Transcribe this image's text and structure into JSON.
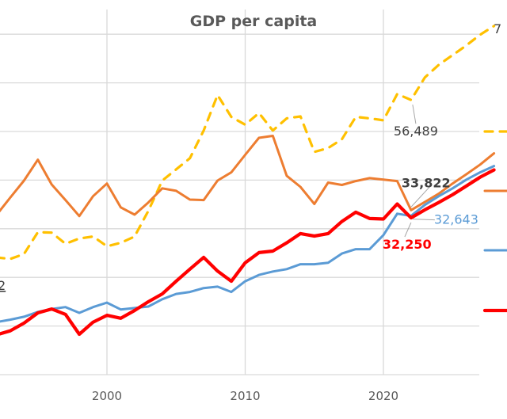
{
  "chart_data": {
    "type": "line",
    "title": "GDP per capita",
    "xlabel": "",
    "ylabel": "",
    "x": [
      1992,
      1993,
      1994,
      1995,
      1996,
      1997,
      1998,
      1999,
      2000,
      2001,
      2002,
      2003,
      2004,
      2005,
      2006,
      2007,
      2008,
      2009,
      2010,
      2011,
      2012,
      2013,
      2014,
      2015,
      2016,
      2017,
      2018,
      2019,
      2020,
      2021,
      2022,
      2023,
      2024,
      2025,
      2026,
      2027,
      2028
    ],
    "x_ticks": [
      "2000",
      "2010",
      "2020"
    ],
    "x_tick_values": [
      2000,
      2010,
      2020
    ],
    "y_gridlines": [
      0,
      10000,
      20000,
      30000,
      40000,
      50000,
      60000,
      70000
    ],
    "ylim": [
      0,
      70000
    ],
    "grid": true,
    "legend": "right (labels cropped)",
    "series": [
      {
        "name": "series-yellow-dashed",
        "color": "#FFC000",
        "style": "dashed",
        "values": [
          24100,
          23800,
          24800,
          29300,
          29200,
          26900,
          28000,
          28400,
          26400,
          27100,
          28400,
          33700,
          39900,
          42200,
          44500,
          50200,
          57500,
          53000,
          51400,
          53800,
          50200,
          52700,
          53100,
          45800,
          46600,
          48400,
          53000,
          52700,
          52300,
          57700,
          56489,
          61100,
          63700,
          65700,
          67700,
          69900,
          71700
        ]
      },
      {
        "name": "series-orange",
        "color": "#ED7D31",
        "style": "solid",
        "values": [
          32800,
          36400,
          39900,
          44200,
          39100,
          35900,
          32600,
          36700,
          39300,
          34400,
          32900,
          35400,
          38300,
          37800,
          36000,
          35900,
          39900,
          41600,
          45200,
          48700,
          49100,
          40900,
          38600,
          35100,
          39500,
          39000,
          39800,
          40400,
          40100,
          39800,
          33822,
          35500,
          37200,
          39300,
          41200,
          43200,
          45500
        ]
      },
      {
        "name": "series-blue",
        "color": "#5B9BD5",
        "style": "solid",
        "values": [
          10800,
          11300,
          11900,
          12900,
          13500,
          13900,
          12700,
          13900,
          14800,
          13400,
          13700,
          14000,
          15500,
          16600,
          17000,
          17800,
          18100,
          17000,
          19200,
          20500,
          21200,
          21700,
          22700,
          22700,
          23000,
          24900,
          25800,
          25800,
          28700,
          33100,
          32643,
          34900,
          36700,
          38300,
          40100,
          41600,
          42900
        ]
      },
      {
        "name": "series-red",
        "color": "#FF0000",
        "style": "solid-thick",
        "values": [
          8200,
          9000,
          10600,
          12700,
          13500,
          12400,
          8300,
          10800,
          12200,
          11600,
          13200,
          15000,
          16600,
          19200,
          21700,
          24100,
          21300,
          19200,
          23000,
          25100,
          25400,
          27100,
          29000,
          28500,
          29000,
          31500,
          33400,
          32100,
          32000,
          35100,
          32250,
          33900,
          35400,
          37000,
          38800,
          40600,
          42100
        ]
      }
    ],
    "annotations": [
      {
        "text": "56,489",
        "series": "series-yellow-dashed",
        "x": 2022,
        "color": "#404040",
        "bold": false
      },
      {
        "text": "33,822",
        "series": "series-orange",
        "x": 2022,
        "color": "#404040",
        "bold": true
      },
      {
        "text": "32,643",
        "series": "series-blue",
        "x": 2022,
        "color": "#5B9BD5",
        "bold": false
      },
      {
        "text": "32,250",
        "series": "series-red",
        "x": 2022,
        "color": "#FF0000",
        "bold": true
      },
      {
        "text": "7",
        "note": "clipped label at top-right",
        "color": "#404040"
      },
      {
        "text": "2",
        "note": "clipped label at left edge",
        "color": "#404040"
      }
    ]
  }
}
